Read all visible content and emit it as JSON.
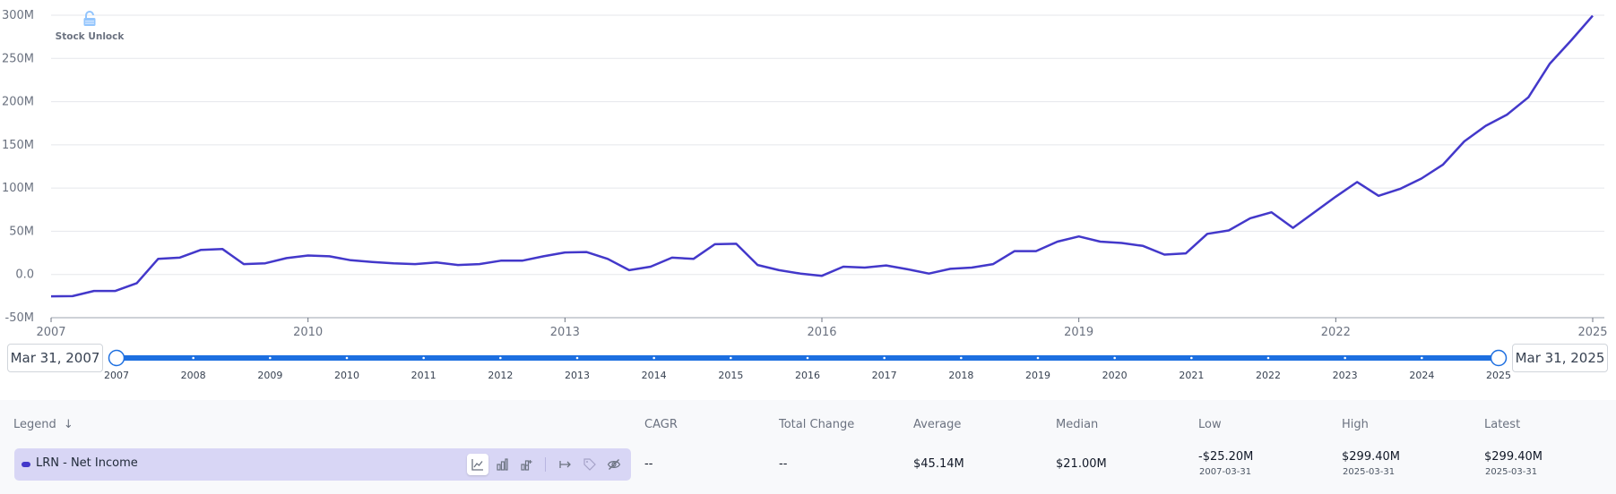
{
  "watermark": {
    "label": "Stock Unlock",
    "icon": "lock-icon"
  },
  "chart_data": {
    "type": "line",
    "title": "LRN - Net Income",
    "x_ticks": [
      "2007",
      "2010",
      "2013",
      "2016",
      "2019",
      "2022",
      "2025"
    ],
    "y_ticks": [
      "300M",
      "250M",
      "200M",
      "150M",
      "100M",
      "50M",
      "0.0",
      "-50M"
    ],
    "y_tick_values": [
      300,
      250,
      200,
      150,
      100,
      50,
      0,
      -50
    ],
    "x_range": [
      2007.0,
      2025.0
    ],
    "ylim": [
      -50,
      300
    ],
    "series": [
      {
        "name": "LRN - Net Income",
        "color": "#4338ca",
        "x": [
          2007.0,
          2007.25,
          2007.5,
          2007.75,
          2008.0,
          2008.25,
          2008.5,
          2008.75,
          2009.0,
          2009.25,
          2009.5,
          2009.75,
          2010.0,
          2010.25,
          2010.5,
          2010.75,
          2011.0,
          2011.25,
          2011.5,
          2011.75,
          2012.0,
          2012.25,
          2012.5,
          2012.75,
          2013.0,
          2013.25,
          2013.5,
          2013.75,
          2014.0,
          2014.25,
          2014.5,
          2014.75,
          2015.0,
          2015.25,
          2015.5,
          2015.75,
          2016.0,
          2016.25,
          2016.5,
          2016.75,
          2017.0,
          2017.25,
          2017.5,
          2017.75,
          2018.0,
          2018.25,
          2018.5,
          2018.75,
          2019.0,
          2019.25,
          2019.5,
          2019.75,
          2020.0,
          2020.25,
          2020.5,
          2020.75,
          2021.0,
          2021.25,
          2021.5,
          2021.75,
          2022.0,
          2022.25,
          2022.5,
          2022.75,
          2023.0,
          2023.25,
          2023.5,
          2023.75,
          2024.0,
          2024.25,
          2024.5,
          2024.75,
          2025.0
        ],
        "values": [
          -25.2,
          -25,
          -19,
          -19,
          -10,
          18,
          19.5,
          28.5,
          29.5,
          12,
          13,
          19,
          22,
          21,
          16.5,
          14.5,
          13,
          12,
          14,
          11,
          12,
          16,
          16,
          21,
          25.5,
          26,
          18,
          5,
          9,
          19.5,
          18,
          35,
          35.5,
          11,
          5,
          1,
          -1.5,
          9,
          8,
          10.5,
          6,
          1,
          6.5,
          8,
          12,
          27,
          27,
          38,
          44,
          38,
          36.5,
          33,
          23,
          24.5,
          47,
          51,
          65,
          72,
          54,
          72,
          90,
          107,
          91,
          99,
          111,
          127,
          154,
          172,
          185,
          205,
          244,
          271,
          299.4
        ]
      }
    ]
  },
  "range": {
    "start_date": "Mar 31, 2007",
    "end_date": "Mar 31, 2025",
    "ticks": [
      "2007",
      "2008",
      "2009",
      "2010",
      "2011",
      "2012",
      "2013",
      "2014",
      "2015",
      "2016",
      "2017",
      "2018",
      "2019",
      "2020",
      "2021",
      "2022",
      "2023",
      "2024",
      "2025"
    ]
  },
  "table": {
    "headers": {
      "legend": "Legend",
      "cagr": "CAGR",
      "total_change": "Total Change",
      "average": "Average",
      "median": "Median",
      "low": "Low",
      "high": "High",
      "latest": "Latest"
    },
    "row": {
      "name": "LRN - Net Income",
      "cagr": "--",
      "total_change": "--",
      "average": "$45.14M",
      "median": "$21.00M",
      "low": "-$25.20M",
      "low_date": "2007-03-31",
      "high": "$299.40M",
      "high_date": "2025-03-31",
      "latest": "$299.40M",
      "latest_date": "2025-03-31"
    }
  }
}
